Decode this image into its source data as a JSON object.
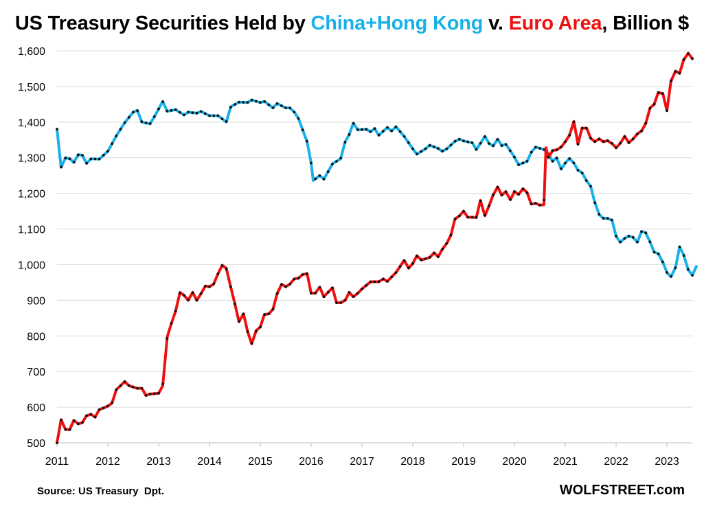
{
  "chart_data": {
    "type": "line",
    "title": {
      "prefix": "US Treasury Securities Held by ",
      "series1": "China+Hong Kong",
      "middle": " v. ",
      "series2": "Euro Area",
      "suffix": ", Billion $"
    },
    "xlabel": "",
    "ylabel": "",
    "ylim": [
      500,
      1600
    ],
    "xlim": [
      2011.0,
      2023.5
    ],
    "grid": true,
    "yticks": [
      "500",
      "600",
      "700",
      "800",
      "900",
      "1,000",
      "1,100",
      "1,200",
      "1,300",
      "1,400",
      "1,500",
      "1,600"
    ],
    "ytick_values": [
      500,
      600,
      700,
      800,
      900,
      1000,
      1100,
      1200,
      1300,
      1400,
      1500,
      1600
    ],
    "xticks": [
      "2011",
      "2012",
      "2013",
      "2014",
      "2015",
      "2016",
      "2017",
      "2018",
      "2019",
      "2020",
      "2021",
      "2022",
      "2023"
    ],
    "xtick_values": [
      2011,
      2012,
      2013,
      2014,
      2015,
      2016,
      2017,
      2018,
      2019,
      2020,
      2021,
      2022,
      2023
    ],
    "series": [
      {
        "name": "China+Hong Kong",
        "color": "#1ab0e8",
        "anchors": [
          [
            2011.0,
            1380
          ],
          [
            2011.08,
            1273
          ],
          [
            2011.17,
            1300
          ],
          [
            2011.25,
            1297
          ],
          [
            2011.33,
            1287
          ],
          [
            2011.42,
            1309
          ],
          [
            2011.5,
            1307
          ],
          [
            2011.58,
            1284
          ],
          [
            2011.67,
            1297
          ],
          [
            2011.83,
            1296
          ],
          [
            2012.0,
            1318
          ],
          [
            2012.17,
            1362
          ],
          [
            2012.33,
            1398
          ],
          [
            2012.5,
            1428
          ],
          [
            2012.58,
            1433
          ],
          [
            2012.67,
            1400
          ],
          [
            2012.83,
            1395
          ],
          [
            2012.92,
            1416
          ],
          [
            2013.08,
            1458
          ],
          [
            2013.17,
            1430
          ],
          [
            2013.33,
            1435
          ],
          [
            2013.5,
            1420
          ],
          [
            2013.58,
            1428
          ],
          [
            2013.75,
            1425
          ],
          [
            2013.83,
            1430
          ],
          [
            2014.0,
            1418
          ],
          [
            2014.17,
            1418
          ],
          [
            2014.33,
            1400
          ],
          [
            2014.42,
            1443
          ],
          [
            2014.58,
            1456
          ],
          [
            2014.75,
            1455
          ],
          [
            2014.83,
            1462
          ],
          [
            2015.0,
            1455
          ],
          [
            2015.08,
            1458
          ],
          [
            2015.25,
            1440
          ],
          [
            2015.33,
            1452
          ],
          [
            2015.5,
            1440
          ],
          [
            2015.58,
            1440
          ],
          [
            2015.67,
            1428
          ],
          [
            2015.75,
            1410
          ],
          [
            2015.92,
            1345
          ],
          [
            2016.0,
            1285
          ],
          [
            2016.04,
            1236
          ],
          [
            2016.17,
            1250
          ],
          [
            2016.25,
            1240
          ],
          [
            2016.33,
            1260
          ],
          [
            2016.42,
            1283
          ],
          [
            2016.58,
            1297
          ],
          [
            2016.67,
            1345
          ],
          [
            2016.75,
            1365
          ],
          [
            2016.83,
            1397
          ],
          [
            2016.92,
            1378
          ],
          [
            2017.08,
            1380
          ],
          [
            2017.17,
            1373
          ],
          [
            2017.25,
            1382
          ],
          [
            2017.33,
            1363
          ],
          [
            2017.5,
            1385
          ],
          [
            2017.58,
            1375
          ],
          [
            2017.67,
            1387
          ],
          [
            2017.83,
            1360
          ],
          [
            2018.0,
            1325
          ],
          [
            2018.08,
            1310
          ],
          [
            2018.25,
            1325
          ],
          [
            2018.33,
            1335
          ],
          [
            2018.5,
            1326
          ],
          [
            2018.58,
            1318
          ],
          [
            2018.67,
            1325
          ],
          [
            2018.83,
            1346
          ],
          [
            2018.92,
            1352
          ],
          [
            2019.0,
            1347
          ],
          [
            2019.17,
            1342
          ],
          [
            2019.25,
            1323
          ],
          [
            2019.33,
            1340
          ],
          [
            2019.42,
            1360
          ],
          [
            2019.5,
            1340
          ],
          [
            2019.58,
            1333
          ],
          [
            2019.67,
            1352
          ],
          [
            2019.75,
            1334
          ],
          [
            2019.83,
            1338
          ],
          [
            2020.0,
            1302
          ],
          [
            2020.08,
            1280
          ],
          [
            2020.25,
            1290
          ],
          [
            2020.33,
            1315
          ],
          [
            2020.42,
            1330
          ],
          [
            2020.58,
            1323
          ],
          [
            2020.67,
            1310
          ],
          [
            2020.75,
            1290
          ],
          [
            2020.83,
            1300
          ],
          [
            2020.92,
            1268
          ],
          [
            2021.0,
            1285
          ],
          [
            2021.08,
            1298
          ],
          [
            2021.17,
            1285
          ],
          [
            2021.25,
            1265
          ],
          [
            2021.33,
            1258
          ],
          [
            2021.42,
            1235
          ],
          [
            2021.5,
            1220
          ],
          [
            2021.58,
            1175
          ],
          [
            2021.67,
            1140
          ],
          [
            2021.75,
            1130
          ],
          [
            2021.83,
            1130
          ],
          [
            2021.92,
            1125
          ],
          [
            2022.0,
            1080
          ],
          [
            2022.08,
            1063
          ],
          [
            2022.17,
            1074
          ],
          [
            2022.25,
            1080
          ],
          [
            2022.33,
            1077
          ],
          [
            2022.42,
            1063
          ],
          [
            2022.5,
            1093
          ],
          [
            2022.58,
            1090
          ],
          [
            2022.67,
            1063
          ],
          [
            2022.75,
            1035
          ],
          [
            2022.83,
            1031
          ],
          [
            2022.92,
            1007
          ],
          [
            2023.0,
            978
          ],
          [
            2023.08,
            966
          ],
          [
            2023.17,
            992
          ],
          [
            2023.25,
            1050
          ],
          [
            2023.33,
            1027
          ],
          [
            2023.42,
            985
          ],
          [
            2023.5,
            970
          ],
          [
            2023.58,
            995
          ]
        ]
      },
      {
        "name": "Euro Area",
        "color": "#ee1111",
        "anchors": [
          [
            2011.0,
            500
          ],
          [
            2011.08,
            565
          ],
          [
            2011.17,
            537
          ],
          [
            2011.25,
            537
          ],
          [
            2011.33,
            563
          ],
          [
            2011.42,
            553
          ],
          [
            2011.5,
            557
          ],
          [
            2011.58,
            576
          ],
          [
            2011.67,
            580
          ],
          [
            2011.75,
            572
          ],
          [
            2011.83,
            593
          ],
          [
            2011.92,
            598
          ],
          [
            2012.0,
            603
          ],
          [
            2012.08,
            611
          ],
          [
            2012.17,
            650
          ],
          [
            2012.25,
            660
          ],
          [
            2012.33,
            672
          ],
          [
            2012.42,
            660
          ],
          [
            2012.58,
            653
          ],
          [
            2012.67,
            653
          ],
          [
            2012.75,
            633
          ],
          [
            2012.83,
            637
          ],
          [
            2013.0,
            639
          ],
          [
            2013.08,
            660
          ],
          [
            2013.17,
            798
          ],
          [
            2013.25,
            835
          ],
          [
            2013.33,
            868
          ],
          [
            2013.42,
            922
          ],
          [
            2013.5,
            914
          ],
          [
            2013.58,
            900
          ],
          [
            2013.67,
            922
          ],
          [
            2013.75,
            900
          ],
          [
            2013.83,
            918
          ],
          [
            2013.92,
            940
          ],
          [
            2014.0,
            938
          ],
          [
            2014.08,
            945
          ],
          [
            2014.17,
            975
          ],
          [
            2014.25,
            998
          ],
          [
            2014.33,
            990
          ],
          [
            2014.42,
            936
          ],
          [
            2014.5,
            890
          ],
          [
            2014.58,
            840
          ],
          [
            2014.67,
            862
          ],
          [
            2014.75,
            812
          ],
          [
            2014.83,
            778
          ],
          [
            2014.92,
            815
          ],
          [
            2015.0,
            825
          ],
          [
            2015.08,
            860
          ],
          [
            2015.17,
            862
          ],
          [
            2015.25,
            875
          ],
          [
            2015.33,
            918
          ],
          [
            2015.42,
            945
          ],
          [
            2015.5,
            938
          ],
          [
            2015.58,
            945
          ],
          [
            2015.67,
            960
          ],
          [
            2015.75,
            962
          ],
          [
            2015.83,
            972
          ],
          [
            2015.92,
            975
          ],
          [
            2016.0,
            920
          ],
          [
            2016.08,
            920
          ],
          [
            2016.17,
            937
          ],
          [
            2016.25,
            910
          ],
          [
            2016.33,
            922
          ],
          [
            2016.42,
            935
          ],
          [
            2016.5,
            893
          ],
          [
            2016.58,
            893
          ],
          [
            2016.67,
            900
          ],
          [
            2016.75,
            922
          ],
          [
            2016.83,
            910
          ],
          [
            2016.92,
            920
          ],
          [
            2017.0,
            932
          ],
          [
            2017.17,
            952
          ],
          [
            2017.33,
            952
          ],
          [
            2017.42,
            960
          ],
          [
            2017.5,
            953
          ],
          [
            2017.58,
            965
          ],
          [
            2017.67,
            978
          ],
          [
            2017.83,
            1012
          ],
          [
            2017.92,
            990
          ],
          [
            2018.0,
            1003
          ],
          [
            2018.08,
            1025
          ],
          [
            2018.17,
            1013
          ],
          [
            2018.33,
            1020
          ],
          [
            2018.42,
            1033
          ],
          [
            2018.5,
            1022
          ],
          [
            2018.58,
            1043
          ],
          [
            2018.67,
            1060
          ],
          [
            2018.75,
            1083
          ],
          [
            2018.83,
            1128
          ],
          [
            2018.92,
            1137
          ],
          [
            2019.0,
            1150
          ],
          [
            2019.08,
            1133
          ],
          [
            2019.17,
            1133
          ],
          [
            2019.25,
            1132
          ],
          [
            2019.33,
            1180
          ],
          [
            2019.42,
            1137
          ],
          [
            2019.5,
            1165
          ],
          [
            2019.58,
            1195
          ],
          [
            2019.67,
            1218
          ],
          [
            2019.75,
            1195
          ],
          [
            2019.83,
            1205
          ],
          [
            2019.92,
            1182
          ],
          [
            2020.0,
            1205
          ],
          [
            2020.08,
            1197
          ],
          [
            2020.17,
            1213
          ],
          [
            2020.25,
            1202
          ],
          [
            2020.33,
            1170
          ],
          [
            2020.42,
            1172
          ],
          [
            2020.5,
            1167
          ],
          [
            2020.58,
            1168
          ],
          [
            2020.62,
            1328
          ],
          [
            2020.67,
            1300
          ],
          [
            2020.75,
            1320
          ],
          [
            2020.83,
            1322
          ],
          [
            2020.92,
            1330
          ],
          [
            2021.0,
            1345
          ],
          [
            2021.08,
            1362
          ],
          [
            2021.17,
            1402
          ],
          [
            2021.25,
            1338
          ],
          [
            2021.33,
            1383
          ],
          [
            2021.42,
            1383
          ],
          [
            2021.5,
            1355
          ],
          [
            2021.58,
            1345
          ],
          [
            2021.67,
            1353
          ],
          [
            2021.75,
            1345
          ],
          [
            2021.83,
            1348
          ],
          [
            2021.92,
            1340
          ],
          [
            2022.0,
            1328
          ],
          [
            2022.08,
            1340
          ],
          [
            2022.17,
            1360
          ],
          [
            2022.25,
            1342
          ],
          [
            2022.33,
            1352
          ],
          [
            2022.42,
            1367
          ],
          [
            2022.5,
            1375
          ],
          [
            2022.58,
            1395
          ],
          [
            2022.67,
            1440
          ],
          [
            2022.75,
            1450
          ],
          [
            2022.83,
            1483
          ],
          [
            2022.92,
            1480
          ],
          [
            2023.0,
            1432
          ],
          [
            2023.08,
            1515
          ],
          [
            2023.17,
            1543
          ],
          [
            2023.25,
            1537
          ],
          [
            2023.33,
            1575
          ],
          [
            2023.42,
            1593
          ],
          [
            2023.5,
            1578
          ]
        ]
      }
    ]
  },
  "footer": {
    "source": "Source: US Treasury  Dpt.",
    "brand": "WOLFSTREET.com"
  }
}
